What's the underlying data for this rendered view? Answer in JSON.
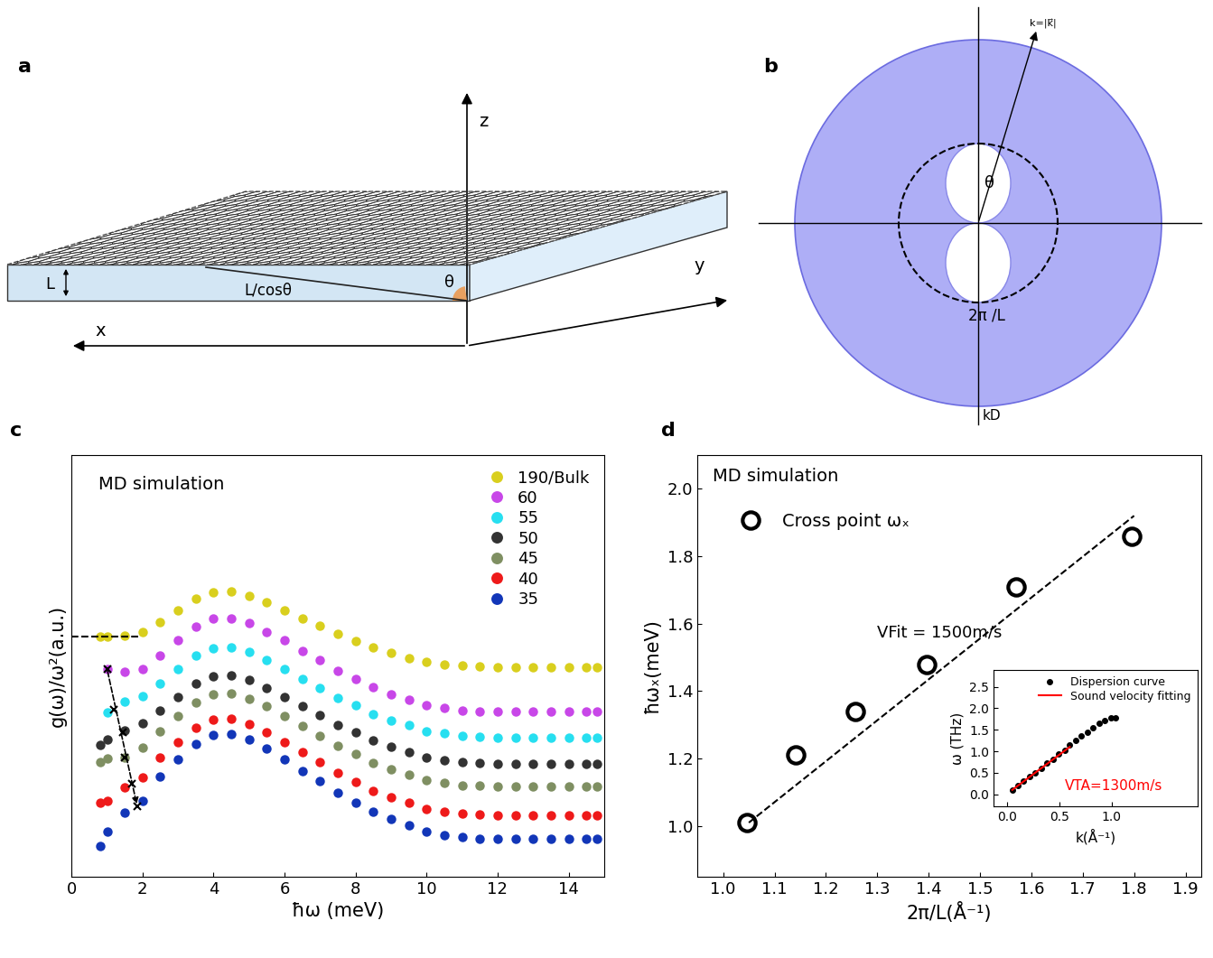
{
  "chart_data": [
    {
      "type": "scatter",
      "annotations": [
        "c",
        "MD simulation"
      ],
      "x_label": "ħω (meV)",
      "y_label": "g(ω)/ω²(a.u.)",
      "xlim": [
        0,
        15
      ],
      "xticks": [
        0,
        2,
        4,
        6,
        8,
        10,
        12,
        14
      ],
      "ylim": [
        0,
        5.3
      ],
      "tick_labels": "x",
      "legend": "upper right",
      "x": [
        0.8,
        1.0,
        1.5,
        2.0,
        2.5,
        3.0,
        3.5,
        4.0,
        4.5,
        5.0,
        5.5,
        6.0,
        6.5,
        7.0,
        7.5,
        8.0,
        8.5,
        9.0,
        9.5,
        10.0,
        10.5,
        11.0,
        11.5,
        12.0,
        12.5,
        13.0,
        13.5,
        14.0,
        14.5,
        14.8
      ],
      "series": [
        {
          "name": "190/Bulk",
          "color": "#d9cf1e",
          "marker": "circle",
          "values": [
            3.02,
            3.02,
            3.03,
            3.07,
            3.2,
            3.35,
            3.49,
            3.57,
            3.58,
            3.53,
            3.45,
            3.35,
            3.25,
            3.15,
            3.05,
            2.96,
            2.88,
            2.81,
            2.75,
            2.7,
            2.67,
            2.65,
            2.64,
            2.63,
            2.63,
            2.63,
            2.63,
            2.63,
            2.63,
            2.63
          ]
        },
        {
          "name": "60",
          "color": "#c847e8",
          "marker": "circle",
          "values": [
            null,
            2.61,
            2.57,
            2.61,
            2.78,
            2.97,
            3.14,
            3.24,
            3.25,
            3.19,
            3.08,
            2.97,
            2.84,
            2.72,
            2.59,
            2.48,
            2.38,
            2.29,
            2.22,
            2.15,
            2.12,
            2.09,
            2.08,
            2.07,
            2.07,
            2.07,
            2.07,
            2.07,
            2.07,
            2.07
          ]
        },
        {
          "name": "55",
          "color": "#27dff0",
          "marker": "circle",
          "values": [
            null,
            2.06,
            2.2,
            2.27,
            2.43,
            2.61,
            2.78,
            2.87,
            2.88,
            2.82,
            2.72,
            2.61,
            2.48,
            2.37,
            2.25,
            2.15,
            2.04,
            1.96,
            1.9,
            1.83,
            1.8,
            1.77,
            1.76,
            1.75,
            1.75,
            1.75,
            1.75,
            1.75,
            1.75,
            1.75
          ]
        },
        {
          "name": "50",
          "color": "#333333",
          "marker": "circle",
          "values": [
            1.65,
            1.72,
            1.84,
            1.93,
            2.09,
            2.26,
            2.43,
            2.52,
            2.53,
            2.47,
            2.37,
            2.26,
            2.14,
            2.03,
            1.91,
            1.81,
            1.71,
            1.63,
            1.56,
            1.5,
            1.46,
            1.44,
            1.43,
            1.42,
            1.42,
            1.42,
            1.42,
            1.42,
            1.42,
            1.42
          ]
        },
        {
          "name": "45",
          "color": "#7f8f62",
          "marker": "circle",
          "values": [
            1.44,
            1.48,
            1.5,
            1.62,
            1.83,
            2.02,
            2.19,
            2.29,
            2.3,
            2.24,
            2.14,
            2.02,
            1.89,
            1.77,
            1.64,
            1.54,
            1.43,
            1.35,
            1.28,
            1.21,
            1.18,
            1.15,
            1.14,
            1.13,
            1.13,
            1.13,
            1.13,
            1.13,
            1.13,
            1.13
          ]
        },
        {
          "name": "40",
          "color": "#ee1a1a",
          "marker": "circle",
          "values": [
            0.93,
            0.95,
            1.12,
            1.25,
            1.5,
            1.69,
            1.87,
            1.97,
            1.98,
            1.92,
            1.81,
            1.69,
            1.56,
            1.44,
            1.3,
            1.19,
            1.08,
            1.0,
            0.93,
            0.85,
            0.82,
            0.79,
            0.78,
            0.77,
            0.77,
            0.77,
            0.77,
            0.77,
            0.77,
            0.77
          ]
        },
        {
          "name": "35",
          "color": "#1236b8",
          "marker": "circle",
          "values": [
            0.38,
            0.57,
            0.8,
            0.95,
            1.26,
            1.47,
            1.67,
            1.78,
            1.79,
            1.72,
            1.61,
            1.47,
            1.33,
            1.2,
            1.05,
            0.93,
            0.81,
            0.72,
            0.64,
            0.56,
            0.52,
            0.5,
            0.48,
            0.47,
            0.47,
            0.47,
            0.47,
            0.47,
            0.47,
            0.47
          ]
        },
        {
          "color": "#000000",
          "line_style": "dashed",
          "x": [
            0,
            1.9
          ],
          "values": [
            3.02,
            3.02
          ]
        },
        {
          "color": "#000000",
          "marker": "x",
          "line_style": "arrow",
          "x": [
            1.0,
            1.2,
            1.45,
            1.5,
            1.7,
            1.85
          ],
          "values": [
            2.61,
            2.1,
            1.82,
            1.5,
            1.17,
            0.88
          ]
        }
      ]
    },
    {
      "type": "scatter",
      "annotations": [
        "d",
        "MD simulation",
        "VFit = 1500m/s"
      ],
      "x_label": "2π/L(Å⁻¹)",
      "y_label": "ħωₓ(meV)",
      "xlim": [
        0.95,
        1.93
      ],
      "xticks": [
        1.0,
        1.1,
        1.2,
        1.3,
        1.4,
        1.5,
        1.6,
        1.7,
        1.8,
        1.9
      ],
      "ylim": [
        0.85,
        2.1
      ],
      "yticks": [
        1.0,
        1.2,
        1.4,
        1.6,
        1.8,
        2.0
      ],
      "legend": "upper left",
      "series": [
        {
          "name": "Cross point ωₓ",
          "color": "#000000",
          "marker": "open_circle",
          "x": [
            1.047,
            1.142,
            1.257,
            1.396,
            1.571,
            1.795
          ],
          "values": [
            1.01,
            1.21,
            1.34,
            1.48,
            1.71,
            1.86
          ]
        },
        {
          "color": "#000000",
          "line_style": "dashed",
          "x": [
            1.05,
            1.8
          ],
          "values": [
            1.01,
            1.92
          ]
        }
      ]
    },
    {
      "type": "scatter",
      "annotations": [
        "VTA=1300m/s"
      ],
      "x_label": "k(Å⁻¹)",
      "y_label": "ω (THz)",
      "xlim": [
        -0.13,
        1.82
      ],
      "xticks": [
        0.0,
        0.5,
        1.0
      ],
      "ylim": [
        -0.29,
        2.9
      ],
      "yticks": [
        0.0,
        0.5,
        1.0,
        1.5,
        2.0,
        2.5
      ],
      "legend": "upper right",
      "series": [
        {
          "name": "Dispersion curve",
          "color": "#000000",
          "marker": "circle",
          "x": [
            0.05,
            0.1,
            0.16,
            0.22,
            0.27,
            0.33,
            0.38,
            0.44,
            0.49,
            0.55,
            0.6,
            0.66,
            0.71,
            0.77,
            0.82,
            0.88,
            0.93,
            0.99,
            1.04
          ],
          "values": [
            0.1,
            0.2,
            0.3,
            0.42,
            0.5,
            0.6,
            0.72,
            0.82,
            0.93,
            1.03,
            1.15,
            1.25,
            1.35,
            1.45,
            1.55,
            1.65,
            1.72,
            1.78,
            1.78
          ]
        },
        {
          "name": "Sound velocity fitting",
          "color": "#ff0000",
          "line_style": "solid",
          "x": [
            0.05,
            0.6
          ],
          "values": [
            0.1,
            1.1
          ]
        }
      ]
    }
  ],
  "diagrams": {
    "a": {
      "label": "a",
      "z": "z",
      "x": "x",
      "y": "y",
      "thickness": "L",
      "slant": "L/cosθ",
      "angle": "θ"
    },
    "b": {
      "label": "b",
      "radius": "k=|k⃗|",
      "angle": "θ",
      "inner": "2π /L",
      "outer": "kD"
    }
  }
}
